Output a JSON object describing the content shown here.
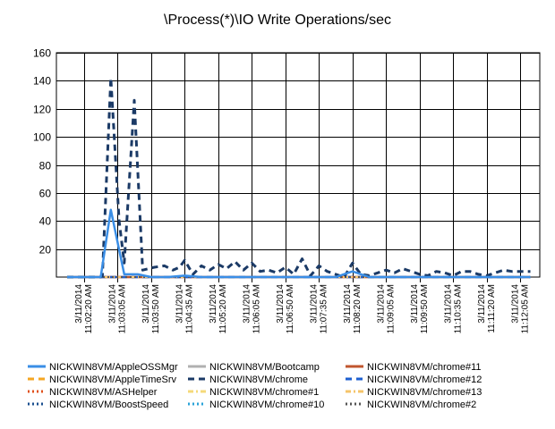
{
  "chart_data": {
    "type": "line",
    "title": "\\Process(*)\\IO Write Operations/sec",
    "xlabel": "",
    "ylabel": "",
    "ylim": [
      0,
      160
    ],
    "yticks": [
      20,
      40,
      60,
      80,
      100,
      120,
      140,
      160
    ],
    "grid": true,
    "legend_position": "bottom",
    "x_tick_labels": [
      [
        "3/11/2014",
        "11:02:20 AM"
      ],
      [
        "3/11/2014",
        "11:03:05 AM"
      ],
      [
        "3/11/2014",
        "11:03:50 AM"
      ],
      [
        "3/11/2014",
        "11:04:35 AM"
      ],
      [
        "3/11/2014",
        "11:05:20 AM"
      ],
      [
        "3/11/2014",
        "11:06:05 AM"
      ],
      [
        "3/11/2014",
        "11:06:50 AM"
      ],
      [
        "3/11/2014",
        "11:07:35 AM"
      ],
      [
        "3/11/2014",
        "11:08:20 AM"
      ],
      [
        "3/11/2014",
        "11:09:05 AM"
      ],
      [
        "3/11/2014",
        "11:09:50 AM"
      ],
      [
        "3/11/2014",
        "11:10:35 AM"
      ],
      [
        "3/11/2014",
        "11:11:20 AM"
      ],
      [
        "3/11/2014",
        "11:12:05 AM"
      ]
    ],
    "x_range_ticks": [
      0,
      13.8
    ],
    "series": [
      {
        "name": "NICKWIN8VM/AppleOSSMgr",
        "color": "#3a8ee6",
        "dash": "solid",
        "width": 2.5,
        "x": [
          0,
          1,
          1.3,
          1.7,
          2.1,
          2.5,
          3,
          3.5,
          4,
          5,
          6,
          7,
          8,
          8.5,
          9,
          10,
          11,
          12,
          13,
          13.8
        ],
        "values": [
          0,
          0,
          48,
          2,
          2,
          0,
          0,
          1,
          0,
          0,
          0,
          0,
          0,
          4,
          0,
          0,
          0,
          0,
          0,
          0
        ]
      },
      {
        "name": "NICKWIN8VM/AppleTimeSrv",
        "color": "#f5a623",
        "dash": "dash",
        "width": 2,
        "x": [
          0,
          13.8
        ],
        "values": [
          0,
          0
        ]
      },
      {
        "name": "NICKWIN8VM/ASHelper",
        "color": "#e0501b",
        "dash": "dot",
        "width": 2,
        "x": [
          0,
          13.8
        ],
        "values": [
          0,
          0
        ]
      },
      {
        "name": "NICKWIN8VM/BoostSpeed",
        "color": "#1b4f8f",
        "dash": "dot",
        "width": 2,
        "x": [
          0,
          13.8
        ],
        "values": [
          0,
          0
        ]
      },
      {
        "name": "NICKWIN8VM/Bootcamp",
        "color": "#b0b0b0",
        "dash": "solid",
        "width": 2.5,
        "x": [
          0,
          13.8
        ],
        "values": [
          0,
          0
        ]
      },
      {
        "name": "NICKWIN8VM/chrome",
        "color": "#1b3a66",
        "dash": "dash",
        "width": 3,
        "x": [
          0,
          1,
          1.05,
          1.3,
          1.55,
          1.7,
          2,
          2.25,
          2.6,
          2.9,
          3.15,
          3.35,
          3.5,
          3.75,
          4.0,
          4.25,
          4.5,
          4.75,
          5.0,
          5.25,
          5.5,
          5.75,
          6.0,
          6.25,
          6.5,
          6.75,
          7.0,
          7.25,
          7.5,
          7.75,
          8.0,
          8.25,
          8.5,
          8.75,
          9.0,
          9.25,
          9.5,
          9.75,
          10.0,
          10.25,
          10.5,
          10.75,
          11.0,
          11.25,
          11.5,
          11.75,
          12.0,
          12.25,
          12.5,
          12.75,
          13.0,
          13.25,
          13.5,
          13.8
        ],
        "values": [
          0,
          0,
          1,
          142,
          40,
          10,
          126,
          5,
          7,
          8,
          5,
          7,
          12,
          2,
          8,
          5,
          9,
          6,
          11,
          5,
          10,
          4,
          5,
          3,
          7,
          2,
          13,
          1,
          8,
          4,
          2,
          0,
          10,
          2,
          1,
          3,
          5,
          3,
          6,
          4,
          2,
          1,
          4,
          3,
          1,
          4,
          4,
          2,
          1,
          3,
          5,
          4,
          4,
          4
        ]
      },
      {
        "name": "NICKWIN8VM/chrome#1",
        "color": "#f5d97a",
        "dash": "dashdot",
        "width": 2,
        "x": [
          0,
          13.8
        ],
        "values": [
          0,
          0
        ]
      },
      {
        "name": "NICKWIN8VM/chrome#10",
        "color": "#2aa3d8",
        "dash": "dot",
        "width": 2,
        "x": [
          0,
          13.8
        ],
        "values": [
          0,
          0
        ]
      },
      {
        "name": "NICKWIN8VM/chrome#11",
        "color": "#c0562e",
        "dash": "solid",
        "width": 2.5,
        "x": [
          0,
          13.8
        ],
        "values": [
          0,
          0
        ]
      },
      {
        "name": "NICKWIN8VM/chrome#12",
        "color": "#1d5fd1",
        "dash": "dash",
        "width": 2.5,
        "x": [
          0,
          13.8
        ],
        "values": [
          0,
          0
        ]
      },
      {
        "name": "NICKWIN8VM/chrome#13",
        "color": "#f5c46a",
        "dash": "dashdot",
        "width": 2,
        "x": [
          0,
          13.8
        ],
        "values": [
          0,
          0
        ]
      },
      {
        "name": "NICKWIN8VM/chrome#2",
        "color": "#555555",
        "dash": "dot",
        "width": 2,
        "x": [
          0,
          13.8
        ],
        "values": [
          0,
          0
        ]
      }
    ]
  }
}
